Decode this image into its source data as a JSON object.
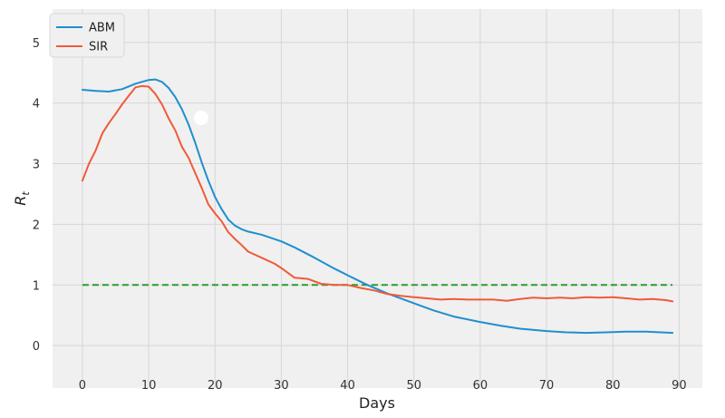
{
  "chart_data": {
    "type": "line",
    "title": "",
    "xlabel": "Days",
    "ylabel": "R",
    "ylabel_subscript": "t",
    "xlim": [
      -4.5,
      93.5
    ],
    "ylim": [
      -0.7,
      5.55
    ],
    "xticks": [
      "0",
      "10",
      "20",
      "30",
      "40",
      "50",
      "60",
      "70",
      "80",
      "90"
    ],
    "xtick_values": [
      0,
      10,
      20,
      30,
      40,
      50,
      60,
      70,
      80,
      90
    ],
    "yticks": [
      "0",
      "1",
      "2",
      "3",
      "4",
      "5"
    ],
    "ytick_values": [
      0,
      1,
      2,
      3,
      4,
      5
    ],
    "grid": true,
    "legend_position": "top-left",
    "series": [
      {
        "name": "ABM",
        "color": "#1f8fce",
        "x": [
          0,
          2,
          4,
          6,
          8,
          10,
          11,
          12,
          13,
          14,
          15,
          16,
          17,
          18,
          19,
          20,
          21,
          22,
          23,
          24,
          25,
          27,
          30,
          32,
          35,
          38,
          40,
          43,
          46,
          50,
          53,
          56,
          60,
          63,
          66,
          70,
          73,
          76,
          79,
          82,
          85,
          89
        ],
        "y": [
          4.22,
          4.2,
          4.19,
          4.23,
          4.32,
          4.38,
          4.39,
          4.35,
          4.25,
          4.1,
          3.9,
          3.65,
          3.35,
          3.02,
          2.72,
          2.45,
          2.25,
          2.08,
          1.98,
          1.92,
          1.88,
          1.83,
          1.72,
          1.62,
          1.45,
          1.27,
          1.16,
          1.0,
          0.86,
          0.7,
          0.58,
          0.48,
          0.39,
          0.33,
          0.28,
          0.24,
          0.22,
          0.21,
          0.22,
          0.23,
          0.23,
          0.21
        ]
      },
      {
        "name": "SIR",
        "color": "#f05a3a",
        "x": [
          0,
          1,
          2,
          3,
          4,
          5,
          6,
          7,
          8,
          9,
          10,
          11,
          12,
          13,
          14,
          15,
          16,
          17,
          18,
          19,
          20,
          21,
          22,
          23,
          24,
          25,
          27,
          29,
          30,
          31,
          32,
          34,
          36,
          38,
          40,
          42,
          44,
          46,
          48,
          50,
          52,
          54,
          56,
          58,
          60,
          62,
          64,
          66,
          68,
          70,
          72,
          74,
          76,
          78,
          80,
          82,
          84,
          86,
          88,
          89
        ],
        "y": [
          2.72,
          3.0,
          3.22,
          3.5,
          3.67,
          3.82,
          3.98,
          4.12,
          4.26,
          4.28,
          4.27,
          4.15,
          3.98,
          3.75,
          3.55,
          3.28,
          3.1,
          2.85,
          2.6,
          2.33,
          2.18,
          2.05,
          1.87,
          1.76,
          1.66,
          1.55,
          1.45,
          1.35,
          1.28,
          1.2,
          1.12,
          1.1,
          1.02,
          1.0,
          1.0,
          0.95,
          0.91,
          0.85,
          0.82,
          0.8,
          0.78,
          0.76,
          0.77,
          0.76,
          0.76,
          0.76,
          0.74,
          0.77,
          0.79,
          0.78,
          0.79,
          0.78,
          0.8,
          0.79,
          0.8,
          0.78,
          0.76,
          0.77,
          0.75,
          0.73
        ]
      }
    ],
    "reference_lines": [
      {
        "y": 1,
        "color": "#2a9e2a",
        "style": "dashed",
        "x_from": 0,
        "x_to": 89
      }
    ]
  }
}
